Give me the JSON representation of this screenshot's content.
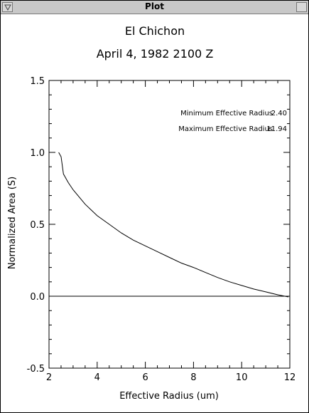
{
  "window": {
    "title": "Plot",
    "icons": {
      "menu": "window-menu-icon",
      "resize": "window-resize-icon"
    }
  },
  "colors": {
    "titlebar": "#c8c8c8",
    "line": "#000000",
    "background": "#ffffff"
  },
  "chart_data": {
    "type": "line",
    "title": "El Chichon",
    "subtitle": "April 4, 1982 2100 Z",
    "xlabel": "Effective Radius (um)",
    "ylabel": "Normalized Area (S)",
    "xlim": [
      2,
      12
    ],
    "ylim": [
      -0.5,
      1.5
    ],
    "x_ticks": [
      "2",
      "4",
      "6",
      "8",
      "10",
      "12"
    ],
    "y_ticks": [
      "1.5",
      "1.0",
      "0.5",
      "0.0",
      "-0.5"
    ],
    "annotations": [
      {
        "label": "Minimum Effective Radius",
        "value": "2.40"
      },
      {
        "label": "Maximum Effective Radius",
        "value": "11.94"
      }
    ],
    "zero_line": true,
    "series": [
      {
        "x": [
          2.4,
          2.5,
          2.6,
          2.8,
          3.0,
          3.5,
          4.0,
          4.5,
          5.0,
          5.5,
          6.0,
          6.5,
          7.0,
          7.5,
          8.0,
          8.5,
          9.0,
          9.5,
          10.0,
          10.5,
          11.0,
          11.5,
          11.94
        ],
        "y": [
          1.0,
          0.97,
          0.85,
          0.79,
          0.74,
          0.64,
          0.56,
          0.5,
          0.44,
          0.39,
          0.35,
          0.31,
          0.27,
          0.23,
          0.2,
          0.165,
          0.13,
          0.1,
          0.075,
          0.05,
          0.03,
          0.01,
          -0.005
        ]
      }
    ]
  }
}
